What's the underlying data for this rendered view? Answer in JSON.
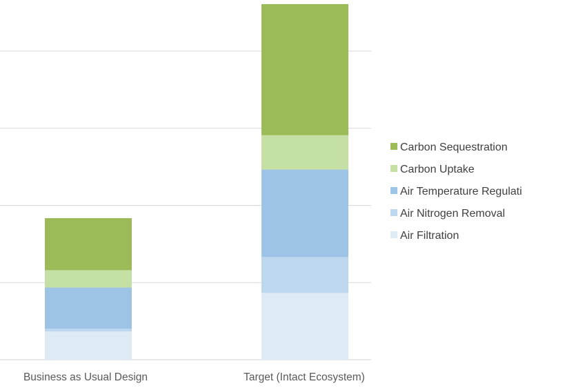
{
  "chart_data": {
    "type": "bar",
    "stacked": true,
    "categories": [
      "Business as Usual Design",
      "Target (Intact Ecosystem)"
    ],
    "series": [
      {
        "name": "Air Filtration",
        "color": "#deebf7",
        "values": [
          7.3,
          17.3
        ]
      },
      {
        "name": "Air Nitrogen Removal",
        "color": "#bdd7ee",
        "values": [
          0.7,
          9.3
        ]
      },
      {
        "name": "Air Temperature Regulati",
        "color": "#9dc3e6",
        "values": [
          10.7,
          22.7
        ]
      },
      {
        "name": "Carbon Uptake",
        "color": "#c5e0a4",
        "values": [
          4.5,
          8.9
        ]
      },
      {
        "name": "Carbon Sequestration",
        "color": "#9bbb59",
        "values": [
          13.5,
          34.0
        ]
      }
    ],
    "legend_order": [
      "Carbon Sequestration",
      "Carbon Uptake",
      "Air Temperature Regulati",
      "Air Nitrogen Removal",
      "Air Filtration"
    ],
    "ylim": [
      0,
      92
    ],
    "grid_step": 20,
    "grid": true,
    "legend_position": "right",
    "gridline_color": "#d9d9d9",
    "label_color": "#595959"
  }
}
